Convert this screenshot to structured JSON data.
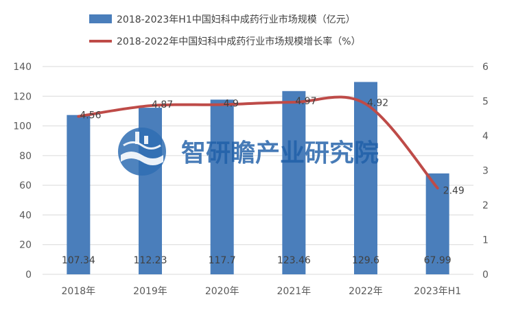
{
  "chart_data": {
    "type": "bar",
    "categories": [
      "2018年",
      "2019年",
      "2020年",
      "2021年",
      "2022年",
      "2023年H1"
    ],
    "series": [
      {
        "name": "2018-2023年H1中国妇科中成药行业市场规模（亿元）",
        "kind": "bar",
        "axis": "left",
        "color": "#4a7ebb",
        "values": [
          107.34,
          112.23,
          117.7,
          123.46,
          129.6,
          67.99
        ]
      },
      {
        "name": "2018-2022年中国妇科中成药行业市场规模增长率（%）",
        "kind": "line",
        "axis": "right",
        "color": "#be4b48",
        "values": [
          4.56,
          4.87,
          4.9,
          4.97,
          4.92,
          2.49
        ]
      }
    ],
    "yleft": {
      "min": 0,
      "max": 140,
      "ticks": [
        0,
        20,
        40,
        60,
        80,
        100,
        120,
        140
      ]
    },
    "yright": {
      "min": 0,
      "max": 6,
      "ticks": [
        0,
        1,
        2,
        3,
        4,
        5,
        6
      ]
    },
    "grid": true,
    "legend": "top"
  },
  "watermark": {
    "text": "智研瞻产业研究院",
    "icon": "institute-logo-icon"
  }
}
